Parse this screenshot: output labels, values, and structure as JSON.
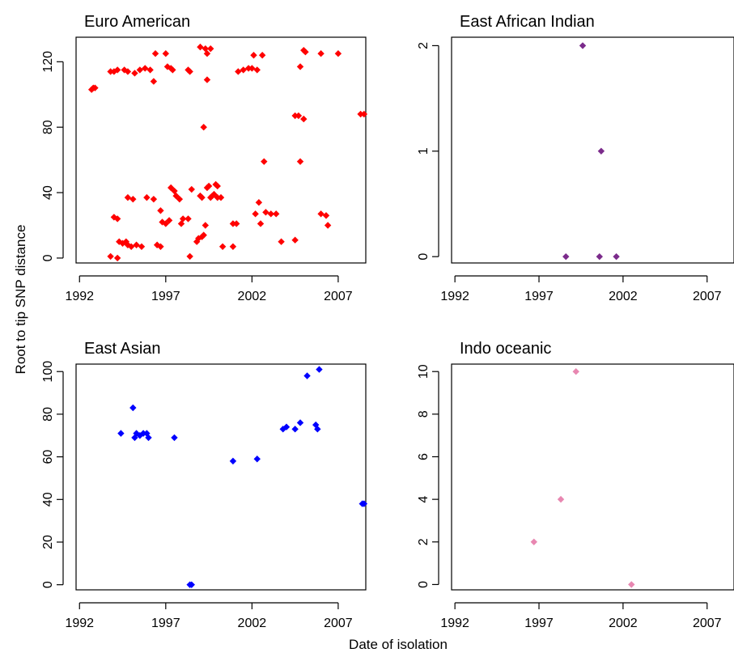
{
  "figure": {
    "ylabel": "Root to tip SNP distance",
    "xlabel": "Date of isolation"
  },
  "chart_data": [
    {
      "type": "scatter",
      "title": "Euro American",
      "color": "#ff0000",
      "xlim": [
        1991.8,
        2008.6
      ],
      "ylim": [
        -3,
        135
      ],
      "xticks": [
        1992,
        1997,
        2002,
        2007
      ],
      "yticks": [
        0,
        40,
        80,
        120
      ],
      "xlabel": "",
      "ylabel": "",
      "points": [
        [
          1992.7,
          103
        ],
        [
          1992.8,
          104
        ],
        [
          1992.9,
          104
        ],
        [
          1993.8,
          114
        ],
        [
          1994.0,
          114
        ],
        [
          1994.2,
          115
        ],
        [
          1994.6,
          115
        ],
        [
          1994.8,
          114
        ],
        [
          1995.2,
          113
        ],
        [
          1995.5,
          115
        ],
        [
          1995.8,
          116
        ],
        [
          1996.1,
          115
        ],
        [
          1996.3,
          108
        ],
        [
          1996.4,
          125
        ],
        [
          1997.0,
          125
        ],
        [
          1997.1,
          117
        ],
        [
          1997.3,
          116
        ],
        [
          1997.4,
          115
        ],
        [
          1998.3,
          115
        ],
        [
          1998.4,
          114
        ],
        [
          1999.0,
          129
        ],
        [
          1999.3,
          128
        ],
        [
          1999.4,
          125
        ],
        [
          1999.6,
          128
        ],
        [
          1999.4,
          109
        ],
        [
          1999.2,
          80
        ],
        [
          2001.2,
          114
        ],
        [
          2001.5,
          115
        ],
        [
          2001.8,
          116
        ],
        [
          2002.0,
          116
        ],
        [
          2002.3,
          115
        ],
        [
          2002.1,
          124
        ],
        [
          2002.6,
          124
        ],
        [
          2004.5,
          87
        ],
        [
          2004.7,
          87
        ],
        [
          2004.8,
          117
        ],
        [
          2005.0,
          127
        ],
        [
          2005.1,
          126
        ],
        [
          2005.0,
          85
        ],
        [
          2004.8,
          59
        ],
        [
          2002.7,
          59
        ],
        [
          2006.0,
          125
        ],
        [
          2007.0,
          125
        ],
        [
          2008.3,
          88
        ],
        [
          2008.5,
          88
        ],
        [
          1993.8,
          1
        ],
        [
          1994.2,
          0
        ],
        [
          1994.0,
          25
        ],
        [
          1994.2,
          24
        ],
        [
          1994.3,
          10
        ],
        [
          1994.5,
          9
        ],
        [
          1994.7,
          10
        ],
        [
          1994.8,
          8
        ],
        [
          1995.0,
          7
        ],
        [
          1995.3,
          8
        ],
        [
          1995.6,
          7
        ],
        [
          1994.8,
          37
        ],
        [
          1995.1,
          36
        ],
        [
          1995.9,
          37
        ],
        [
          1996.3,
          36
        ],
        [
          1996.5,
          8
        ],
        [
          1996.7,
          7
        ],
        [
          1996.7,
          29
        ],
        [
          1996.8,
          22
        ],
        [
          1997.0,
          21
        ],
        [
          1997.2,
          23
        ],
        [
          1997.3,
          43
        ],
        [
          1997.5,
          41
        ],
        [
          1997.6,
          38
        ],
        [
          1997.8,
          36
        ],
        [
          1997.9,
          21
        ],
        [
          1998.0,
          24
        ],
        [
          1998.3,
          24
        ],
        [
          1998.4,
          1
        ],
        [
          1998.5,
          42
        ],
        [
          1998.8,
          10
        ],
        [
          1998.9,
          12
        ],
        [
          1999.0,
          38
        ],
        [
          1999.1,
          37
        ],
        [
          1999.1,
          13
        ],
        [
          1999.2,
          14
        ],
        [
          1999.3,
          20
        ],
        [
          1999.4,
          43
        ],
        [
          1999.5,
          44
        ],
        [
          1999.6,
          37
        ],
        [
          1999.7,
          38
        ],
        [
          1999.8,
          39
        ],
        [
          1999.9,
          45
        ],
        [
          2000.0,
          44
        ],
        [
          2000.0,
          37
        ],
        [
          2000.2,
          37
        ],
        [
          2000.3,
          7
        ],
        [
          2000.9,
          21
        ],
        [
          2001.1,
          21
        ],
        [
          2000.9,
          7
        ],
        [
          2002.2,
          27
        ],
        [
          2002.4,
          34
        ],
        [
          2002.5,
          21
        ],
        [
          2002.8,
          28
        ],
        [
          2003.1,
          27
        ],
        [
          2003.4,
          27
        ],
        [
          2003.7,
          10
        ],
        [
          2004.5,
          11
        ],
        [
          2006.0,
          27
        ],
        [
          2006.3,
          26
        ],
        [
          2006.4,
          20
        ]
      ]
    },
    {
      "type": "scatter",
      "title": "East African Indian",
      "color": "#7b2b8b",
      "xlim": [
        1991.8,
        2008.6
      ],
      "ylim": [
        -0.06,
        2.08
      ],
      "xticks": [
        1992,
        1997,
        2002,
        2007
      ],
      "yticks": [
        0,
        1,
        2
      ],
      "xlabel": "",
      "ylabel": "",
      "points": [
        [
          1998.6,
          0
        ],
        [
          1999.6,
          2
        ],
        [
          2000.6,
          0
        ],
        [
          2000.7,
          1
        ],
        [
          2001.6,
          0
        ]
      ]
    },
    {
      "type": "scatter",
      "title": "East Asian",
      "color": "#0000ff",
      "xlim": [
        1991.8,
        2008.6
      ],
      "ylim": [
        -2.4,
        103.5
      ],
      "xticks": [
        1992,
        1997,
        2002,
        2007
      ],
      "yticks": [
        0,
        20,
        40,
        60,
        80,
        100
      ],
      "xlabel": "",
      "ylabel": "",
      "points": [
        [
          1994.4,
          71
        ],
        [
          1995.1,
          83
        ],
        [
          1995.2,
          69
        ],
        [
          1995.3,
          71
        ],
        [
          1995.5,
          70
        ],
        [
          1995.7,
          71
        ],
        [
          1995.9,
          71
        ],
        [
          1996.0,
          69
        ],
        [
          1997.5,
          69
        ],
        [
          1998.4,
          0
        ],
        [
          1998.5,
          0
        ],
        [
          2000.9,
          58
        ],
        [
          2002.3,
          59
        ],
        [
          2003.8,
          73
        ],
        [
          2004.0,
          74
        ],
        [
          2004.5,
          73
        ],
        [
          2004.8,
          76
        ],
        [
          2005.2,
          98
        ],
        [
          2005.7,
          75
        ],
        [
          2005.8,
          73
        ],
        [
          2005.9,
          101
        ],
        [
          2008.4,
          38
        ],
        [
          2008.5,
          38
        ]
      ]
    },
    {
      "type": "scatter",
      "title": "Indo oceanic",
      "color": "#e887b1",
      "xlim": [
        1991.8,
        2008.6
      ],
      "ylim": [
        -0.25,
        10.35
      ],
      "xticks": [
        1992,
        1997,
        2002,
        2007
      ],
      "yticks": [
        0,
        2,
        4,
        6,
        8,
        10
      ],
      "xlabel": "",
      "ylabel": "",
      "points": [
        [
          1996.7,
          2
        ],
        [
          1998.3,
          4
        ],
        [
          1999.2,
          10
        ],
        [
          2002.5,
          0
        ]
      ]
    }
  ]
}
